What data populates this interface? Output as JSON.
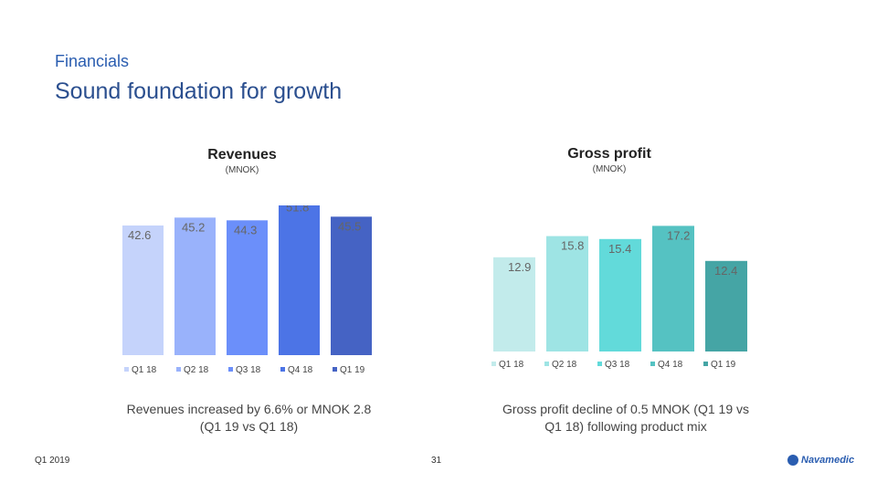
{
  "header": {
    "section": "Financials",
    "title": "Sound foundation for growth"
  },
  "revenues": {
    "title": "Revenues",
    "subtitle": "(MNOK)",
    "caption_line1": "Revenues increased by 6.6% or MNOK 2.8",
    "caption_line2": "(Q1 19 vs Q1 18)"
  },
  "gross_profit": {
    "title": "Gross profit",
    "subtitle": "(MNOK)",
    "caption_line1": "Gross profit decline of 0.5 MNOK (Q1 19 vs",
    "caption_line2": "Q1 18) following product mix"
  },
  "footer": {
    "date": "Q1 2019",
    "page": "31",
    "logo_text": "Navamedic"
  },
  "chart_data": [
    {
      "type": "bar",
      "title": "Revenues",
      "subtitle": "(MNOK)",
      "categories": [
        "Q1 18",
        "Q2 18",
        "Q3 18",
        "Q4 18",
        "Q1 19"
      ],
      "values": [
        42.6,
        45.2,
        44.3,
        51.8,
        45.5
      ],
      "labels": [
        "42.6",
        "45.2",
        "44.3",
        "51.8",
        "45.5"
      ],
      "colors": [
        "#c5d3fb",
        "#99b2fb",
        "#6b8ffa",
        "#4c74e6",
        "#4563c4"
      ],
      "ylim": [
        0,
        60
      ],
      "legend": "bottom"
    },
    {
      "type": "bar",
      "title": "Gross profit",
      "subtitle": "(MNOK)",
      "categories": [
        "Q1 18",
        "Q2 18",
        "Q3 18",
        "Q4 18",
        "Q1 19"
      ],
      "values": [
        12.9,
        15.8,
        15.4,
        17.2,
        12.4
      ],
      "labels": [
        "12.9",
        "15.8",
        "15.4",
        "17.2",
        "12.4"
      ],
      "colors": [
        "#c2ebeb",
        "#9ee4e4",
        "#62dada",
        "#55c2c2",
        "#45a5a5"
      ],
      "ylim": [
        0,
        20
      ],
      "legend": "bottom"
    }
  ]
}
